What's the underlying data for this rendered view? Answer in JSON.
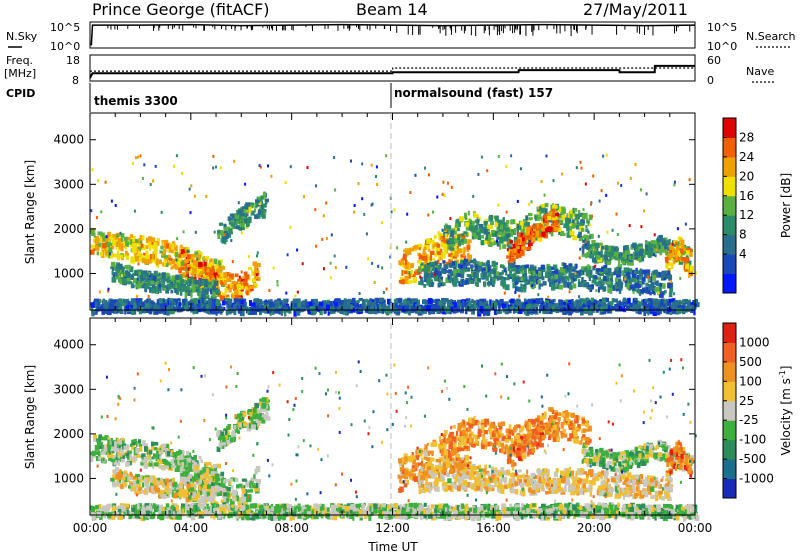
{
  "header": {
    "station": "Prince George (fitACF)",
    "beam": "Beam 14",
    "date": "27/May/2011"
  },
  "side_labels": {
    "nsky": "N.Sky",
    "freq": "Freq.",
    "freq_unit": "[MHz]",
    "cpid": "CPID",
    "nsearch": "N.Search",
    "nave": "Nave"
  },
  "cpid_labels": {
    "first": "themis 3300",
    "second": "normalsound (fast) 157"
  },
  "chart_data": [
    {
      "type": "line",
      "name": "N.Sky / N.Search",
      "y_left_ticks": [
        "10^5",
        "10^0"
      ],
      "y_right_ticks": [
        "10^5",
        "10^0"
      ],
      "series": [
        {
          "name": "N.Sky",
          "x": [
            0.05,
            0.1,
            2,
            4,
            6,
            8,
            10,
            12,
            14,
            16,
            18,
            20,
            22,
            24
          ],
          "values": [
            0.1,
            0.88,
            0.88,
            0.9,
            0.86,
            0.88,
            0.9,
            0.88,
            0.86,
            0.88,
            0.9,
            0.88,
            0.86,
            0.88
          ]
        }
      ]
    },
    {
      "type": "line",
      "name": "Frequency / Nave",
      "y_left_ticks": [
        "18",
        "8"
      ],
      "y_right_ticks": [
        "60",
        "0"
      ],
      "series": [
        {
          "name": "Freq",
          "x": [
            0,
            0.1,
            12,
            12.01,
            17,
            17.01,
            21,
            21.01,
            22.4,
            22.41,
            24
          ],
          "values": [
            0.12,
            0.3,
            0.3,
            0.34,
            0.34,
            0.42,
            0.42,
            0.34,
            0.34,
            0.58,
            0.58
          ]
        },
        {
          "name": "Nave",
          "x": [
            0,
            12,
            12.01,
            24
          ],
          "values": [
            0.38,
            0.38,
            0.5,
            0.5
          ]
        }
      ]
    },
    {
      "type": "heatmap",
      "name": "Power",
      "ylabel": "Slant Range [km]",
      "ylim": [
        180,
        4600
      ],
      "yticks": [
        1000,
        2000,
        3000,
        4000
      ],
      "colorbar": {
        "label": "Power [dB]",
        "ticks": [
          "28",
          "24",
          "20",
          "16",
          "12",
          "8",
          "4"
        ],
        "colors": [
          "#0018ff",
          "#1a48b8",
          "#2a6e8e",
          "#2c8c6a",
          "#5ab040",
          "#f0e000",
          "#f0a000",
          "#f06000",
          "#e00000"
        ]
      },
      "bands": [
        {
          "x": [
            0,
            1,
            2,
            3,
            3.8,
            4.5,
            5.2
          ],
          "y": [
            1750,
            1650,
            1600,
            1500,
            1350,
            1200,
            1000
          ],
          "width": 280,
          "level": 0.65
        },
        {
          "x": [
            3.5,
            4.5,
            5.2,
            6,
            6.6
          ],
          "y": [
            1300,
            1000,
            750,
            700,
            1100
          ],
          "width": 300,
          "level": 0.8
        },
        {
          "x": [
            0.8,
            2,
            3.5,
            5
          ],
          "y": [
            1100,
            900,
            800,
            650
          ],
          "width": 200,
          "level": 0.35
        },
        {
          "x": [
            5,
            6,
            7
          ],
          "y": [
            1850,
            2300,
            2650
          ],
          "width": 250,
          "level": 0.4
        },
        {
          "x": [
            12.2,
            13,
            14,
            15
          ],
          "y": [
            1150,
            1300,
            1650,
            1500
          ],
          "width": 380,
          "level": 0.75
        },
        {
          "x": [
            14,
            15,
            16,
            17,
            18,
            19,
            19.8
          ],
          "y": [
            1800,
            2100,
            2000,
            1900,
            2300,
            2200,
            2000
          ],
          "width": 320,
          "level": 0.45
        },
        {
          "x": [
            16.5,
            17.5,
            18.5
          ],
          "y": [
            1500,
            1900,
            2300
          ],
          "width": 240,
          "level": 0.85
        },
        {
          "x": [
            19.5,
            21,
            22.5,
            23.8
          ],
          "y": [
            1600,
            1400,
            1700,
            1400
          ],
          "width": 200,
          "level": 0.4
        },
        {
          "x": [
            22.8,
            23.3,
            23.8
          ],
          "y": [
            1300,
            1600,
            1200
          ],
          "width": 280,
          "level": 0.75
        },
        {
          "x": [
            13,
            15,
            17,
            19,
            21,
            23
          ],
          "y": [
            1000,
            1100,
            950,
            1000,
            900,
            800
          ],
          "width": 260,
          "level": 0.3
        },
        {
          "x": [
            0,
            4,
            8,
            12,
            16,
            20,
            24
          ],
          "y": [
            300,
            320,
            300,
            320,
            300,
            330,
            300
          ],
          "width": 140,
          "level": 0.2
        }
      ]
    },
    {
      "type": "heatmap",
      "name": "Velocity",
      "xlabel": "Time UT",
      "ylabel": "Slant Range [km]",
      "ylim": [
        180,
        4600
      ],
      "yticks": [
        1000,
        2000,
        3000,
        4000
      ],
      "xticks": [
        "00:00",
        "04:00",
        "08:00",
        "12:00",
        "16:00",
        "20:00",
        "00:00"
      ],
      "colorbar": {
        "label": "Velocity [m s^-1]",
        "label_main": "Velocity [m s",
        "label_sup": "-1",
        "label_end": "]",
        "ticks": [
          "1000",
          "500",
          "100",
          "25",
          "-25",
          "-100",
          "-500",
          "-1000"
        ],
        "colors": [
          "#1a2ab8",
          "#1a6e8e",
          "#2c8c5a",
          "#3cb03c",
          "#c8c8c0",
          "#f0c030",
          "#f09020",
          "#f06020",
          "#e02010"
        ]
      },
      "bands": [
        {
          "x": [
            0,
            1,
            2,
            3,
            3.8,
            4.5,
            5.2
          ],
          "y": [
            1750,
            1650,
            1600,
            1500,
            1350,
            1200,
            1000
          ],
          "width": 280,
          "level": 0.44
        },
        {
          "x": [
            3.5,
            4.5,
            5.2,
            6,
            6.6
          ],
          "y": [
            1300,
            1000,
            750,
            700,
            1100
          ],
          "width": 300,
          "level": 0.44
        },
        {
          "x": [
            0.8,
            2,
            3.5,
            5
          ],
          "y": [
            1100,
            900,
            800,
            650
          ],
          "width": 200,
          "level": 0.56
        },
        {
          "x": [
            5,
            6,
            7
          ],
          "y": [
            1850,
            2300,
            2650
          ],
          "width": 250,
          "level": 0.44
        },
        {
          "x": [
            12.2,
            13,
            14,
            15
          ],
          "y": [
            1150,
            1300,
            1650,
            1500
          ],
          "width": 380,
          "level": 0.7
        },
        {
          "x": [
            14,
            15,
            16,
            17,
            18,
            19,
            19.8
          ],
          "y": [
            1800,
            2100,
            2000,
            1900,
            2300,
            2200,
            2000
          ],
          "width": 320,
          "level": 0.75
        },
        {
          "x": [
            16.5,
            17.5,
            18.5
          ],
          "y": [
            1500,
            1900,
            2300
          ],
          "width": 240,
          "level": 0.8
        },
        {
          "x": [
            19.5,
            21,
            22.5,
            23.8
          ],
          "y": [
            1600,
            1400,
            1700,
            1400
          ],
          "width": 200,
          "level": 0.44
        },
        {
          "x": [
            22.8,
            23.3,
            23.8
          ],
          "y": [
            1300,
            1600,
            1200
          ],
          "width": 280,
          "level": 0.8
        },
        {
          "x": [
            13,
            15,
            17,
            19,
            21,
            23
          ],
          "y": [
            1000,
            1100,
            950,
            1000,
            900,
            800
          ],
          "width": 260,
          "level": 0.6
        },
        {
          "x": [
            0,
            4,
            8,
            12,
            16,
            20,
            24
          ],
          "y": [
            300,
            320,
            300,
            320,
            300,
            330,
            300
          ],
          "width": 140,
          "level": 0.44
        }
      ]
    }
  ]
}
